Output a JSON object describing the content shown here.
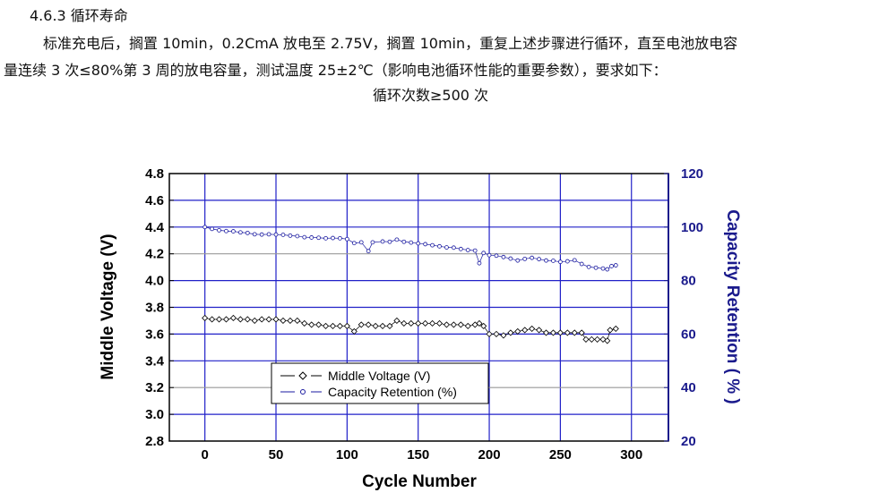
{
  "section": {
    "heading": "4.6.3  循环寿命",
    "paragraph_line1": "标准充电后，搁置 10min，0.2CmA 放电至 2.75V，搁置 10min，重复上述步骤进行循环，直至电池放电容",
    "paragraph_line2": "量连续 3 次≤80%第 3 周的放电容量，测试温度 25±2℃（影响电池循环性能的重要参数），要求如下：",
    "requirement": "循环次数≥500 次"
  },
  "chart_data": {
    "type": "line",
    "title": "",
    "xlabel": "Cycle Number",
    "ylabel": "Middle Voltage (V)",
    "y2label": "Capacity Retention ( % )",
    "xlim": [
      -25,
      326
    ],
    "ylim": [
      2.8,
      4.8
    ],
    "y2lim": [
      20,
      120
    ],
    "xticks": [
      "0",
      "50",
      "100",
      "150",
      "200",
      "250",
      "300"
    ],
    "yticks": [
      "2.8",
      "3.0",
      "3.2",
      "3.4",
      "3.6",
      "3.8",
      "4.0",
      "4.2",
      "4.4",
      "4.6",
      "4.8"
    ],
    "y2ticks": [
      "20",
      "40",
      "60",
      "80",
      "100",
      "120"
    ],
    "grid": true,
    "legend_position": "bottom-left",
    "colors": {
      "voltage": "#000000",
      "capacity": "#1a1aa0",
      "grid": "#2020c8",
      "right_axis": "#1a1a8c"
    },
    "series": [
      {
        "name": "Middle Voltage (V)",
        "axis": "left",
        "marker": "diamond",
        "x": [
          0,
          5,
          10,
          15,
          20,
          25,
          30,
          35,
          40,
          45,
          50,
          55,
          60,
          65,
          70,
          75,
          80,
          85,
          90,
          95,
          100,
          105,
          110,
          115,
          120,
          125,
          130,
          135,
          140,
          145,
          150,
          155,
          160,
          165,
          170,
          175,
          180,
          185,
          190,
          193,
          196,
          200,
          205,
          210,
          215,
          220,
          225,
          230,
          235,
          240,
          245,
          250,
          255,
          260,
          265,
          268,
          272,
          276,
          280,
          283,
          285,
          289
        ],
        "y": [
          3.72,
          3.71,
          3.71,
          3.71,
          3.72,
          3.71,
          3.71,
          3.7,
          3.71,
          3.71,
          3.71,
          3.7,
          3.7,
          3.7,
          3.68,
          3.67,
          3.67,
          3.66,
          3.66,
          3.66,
          3.66,
          3.62,
          3.67,
          3.67,
          3.66,
          3.66,
          3.66,
          3.7,
          3.68,
          3.68,
          3.68,
          3.68,
          3.68,
          3.68,
          3.67,
          3.67,
          3.67,
          3.66,
          3.67,
          3.68,
          3.66,
          3.6,
          3.6,
          3.59,
          3.61,
          3.62,
          3.63,
          3.64,
          3.63,
          3.61,
          3.61,
          3.61,
          3.61,
          3.61,
          3.61,
          3.56,
          3.56,
          3.56,
          3.56,
          3.55,
          3.63,
          3.64
        ]
      },
      {
        "name": "Capacity Retention (%)",
        "axis": "right",
        "marker": "circle",
        "x": [
          0,
          5,
          10,
          15,
          20,
          25,
          30,
          35,
          40,
          45,
          50,
          55,
          60,
          65,
          70,
          75,
          80,
          85,
          90,
          95,
          100,
          105,
          110,
          115,
          118,
          125,
          130,
          135,
          140,
          145,
          150,
          155,
          160,
          165,
          170,
          175,
          180,
          185,
          190,
          193,
          196,
          200,
          205,
          210,
          215,
          220,
          225,
          230,
          235,
          240,
          245,
          250,
          255,
          260,
          265,
          270,
          275,
          280,
          283,
          286,
          289
        ],
        "y": [
          100,
          99.3,
          98.8,
          98.5,
          98.4,
          98,
          97.8,
          97.3,
          97.2,
          97.3,
          97.2,
          97.1,
          96.8,
          96.6,
          96.2,
          96.1,
          96,
          95.8,
          95.9,
          95.8,
          95.5,
          94,
          94.3,
          91,
          94.3,
          94.6,
          94.5,
          95.3,
          94.5,
          94.2,
          93.9,
          93.6,
          93.2,
          92.8,
          92.4,
          92.3,
          91.8,
          91.4,
          91.2,
          86.5,
          90.3,
          89.5,
          89.3,
          88.8,
          88.2,
          87.5,
          88.1,
          88.5,
          88,
          87.5,
          87.4,
          87,
          87.2,
          87.6,
          86.2,
          85.1,
          84.8,
          84.5,
          84.2,
          85.4,
          85.7
        ]
      }
    ]
  }
}
